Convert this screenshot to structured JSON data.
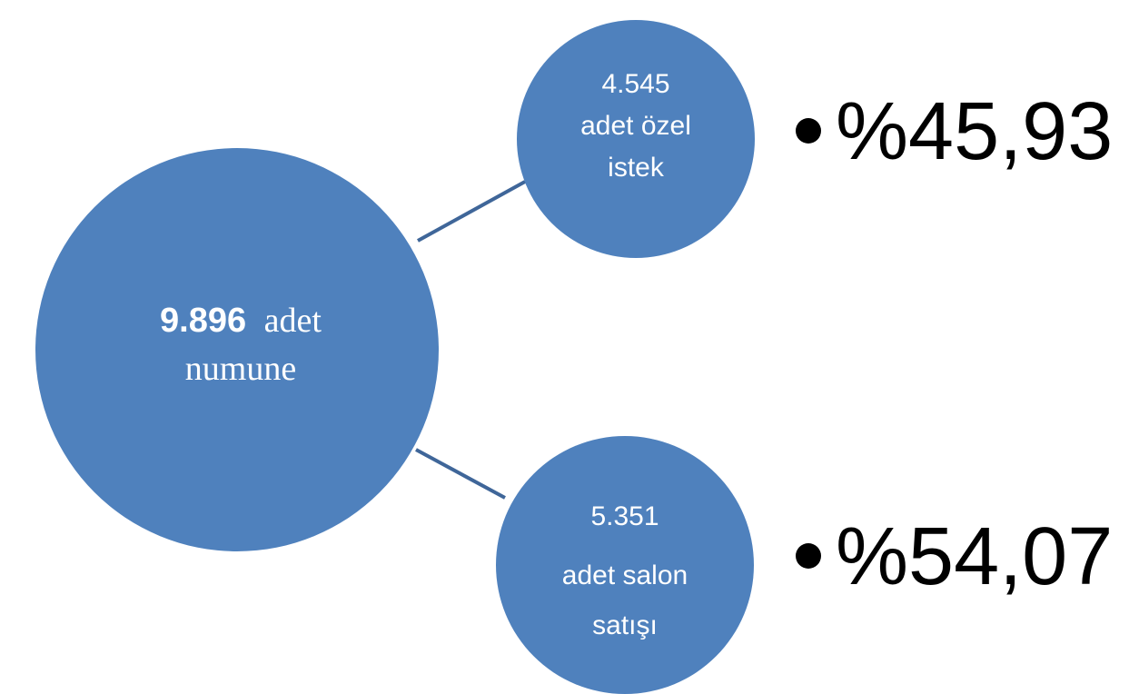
{
  "center": {
    "number": "9.896",
    "unit": "adet",
    "label": "numune"
  },
  "branches": [
    {
      "number": "4.545",
      "label_lines": [
        "adet özel",
        "istek"
      ],
      "share": "%45,93"
    },
    {
      "number": "5.351",
      "label_lines": [
        "adet salon",
        "satışı"
      ],
      "share": "%54,07"
    }
  ]
}
